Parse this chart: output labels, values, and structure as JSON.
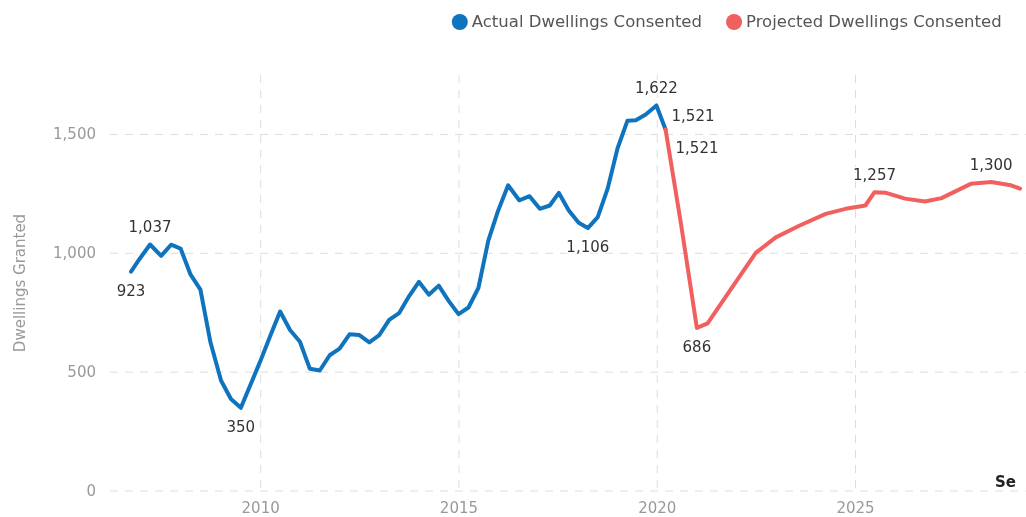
{
  "chart_data": {
    "type": "line",
    "ylabel": "Dwellings Granted",
    "xlim": [
      2006.2,
      2029.3
    ],
    "xticks": [
      2010,
      2015,
      2020,
      2025
    ],
    "ylim": [
      0,
      1750
    ],
    "yticks": [
      0,
      {
        "value": 500,
        "label": "500"
      },
      {
        "value": 1000,
        "label": "1,000"
      },
      {
        "value": 1500,
        "label": "1,500"
      }
    ],
    "grid": true,
    "legend": "top right",
    "line_style": "solid",
    "marker": "none",
    "annotations": [
      "Se"
    ],
    "series": [
      {
        "name": "Actual Dwellings Consented",
        "color": "#0f73be",
        "x": [
          2006.73,
          2006.94,
          2007.21,
          2007.49,
          2007.74,
          2007.98,
          2008.23,
          2008.48,
          2008.73,
          2009.0,
          2009.25,
          2009.5,
          2009.75,
          2010.0,
          2010.25,
          2010.49,
          2010.74,
          2010.99,
          2011.24,
          2011.49,
          2011.74,
          2011.99,
          2012.24,
          2012.49,
          2012.74,
          2012.99,
          2013.24,
          2013.49,
          2013.74,
          2013.99,
          2014.24,
          2014.49,
          2014.74,
          2014.99,
          2015.24,
          2015.49,
          2015.74,
          2015.99,
          2016.24,
          2016.52,
          2016.78,
          2017.04,
          2017.29,
          2017.52,
          2017.77,
          2018.02,
          2018.25,
          2018.5,
          2018.75,
          2019.0,
          2019.25,
          2019.46,
          2019.71,
          2019.98,
          2020.21
        ],
        "values": [
          923,
          975,
          1037,
          989,
          1036,
          1020,
          911,
          847,
          628,
          465,
          387,
          350,
          450,
          550,
          656,
          755,
          677,
          628,
          514,
          507,
          571,
          599,
          659,
          656,
          625,
          656,
          720,
          748,
          819,
          880,
          826,
          864,
          800,
          744,
          772,
          854,
          1053,
          1180,
          1286,
          1223,
          1240,
          1187,
          1201,
          1254,
          1180,
          1128,
          1106,
          1152,
          1272,
          1442,
          1558,
          1560,
          1584,
          1622,
          1521
        ],
        "value_labels": [
          "923",
          null,
          "1,037",
          null,
          null,
          null,
          null,
          null,
          null,
          null,
          null,
          "350",
          null,
          null,
          null,
          null,
          null,
          null,
          null,
          null,
          null,
          null,
          null,
          null,
          null,
          null,
          null,
          null,
          null,
          null,
          null,
          null,
          null,
          null,
          null,
          null,
          null,
          null,
          null,
          null,
          null,
          null,
          null,
          null,
          null,
          null,
          "1,106",
          null,
          null,
          null,
          null,
          null,
          null,
          "1,622",
          "1,521"
        ]
      },
      {
        "name": "Projected Dwellings Consented",
        "color": "#f0605e",
        "x": [
          2020.21,
          2020.6,
          2021.0,
          2021.27,
          2021.82,
          2022.49,
          2022.99,
          2023.58,
          2024.25,
          2024.75,
          2025.25,
          2025.48,
          2025.75,
          2026.25,
          2026.75,
          2027.17,
          2027.92,
          2028.42,
          2028.92,
          2029.15
        ],
        "values": [
          1521,
          1123,
          686,
          705,
          840,
          1003,
          1067,
          1116,
          1166,
          1187,
          1201,
          1257,
          1255,
          1230,
          1218,
          1232,
          1293,
          1300,
          1286,
          1272
        ],
        "value_labels": [
          "1,521",
          null,
          "686",
          null,
          null,
          null,
          null,
          null,
          null,
          null,
          null,
          "1,257",
          null,
          null,
          null,
          null,
          null,
          "1,300",
          null,
          null
        ]
      }
    ]
  }
}
